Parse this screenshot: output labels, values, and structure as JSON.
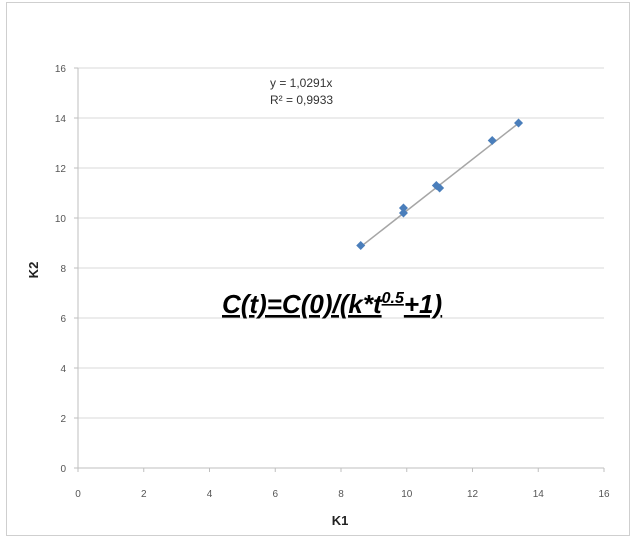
{
  "chart_data": {
    "type": "scatter",
    "title": "",
    "xlabel": "K1",
    "ylabel": "K2",
    "xlim": [
      0,
      16
    ],
    "ylim": [
      0,
      16
    ],
    "xticks": [
      0,
      2,
      4,
      6,
      8,
      10,
      12,
      14,
      16
    ],
    "yticks": [
      0,
      2,
      4,
      6,
      8,
      10,
      12,
      14,
      16
    ],
    "grid": "horizontal",
    "points": [
      {
        "x": 8.6,
        "y": 8.9
      },
      {
        "x": 9.9,
        "y": 10.2
      },
      {
        "x": 9.9,
        "y": 10.4
      },
      {
        "x": 10.9,
        "y": 11.3
      },
      {
        "x": 11.0,
        "y": 11.2
      },
      {
        "x": 12.6,
        "y": 13.1
      },
      {
        "x": 13.4,
        "y": 13.8
      }
    ],
    "trendline": {
      "slope": 1.0291,
      "intercept": 0,
      "x_range": [
        8.6,
        13.4
      ]
    },
    "trendline_equation": "y = 1,0291x",
    "trendline_r2": "R² = 0,9933",
    "annotation_formula": {
      "base": "C(t)=C(0)/(k*t",
      "sup": "0.5",
      "tail": "+1)"
    },
    "colors": {
      "marker": "#4a7ebb",
      "trendline": "#a6a6a6",
      "grid": "#d9d9d9"
    }
  }
}
